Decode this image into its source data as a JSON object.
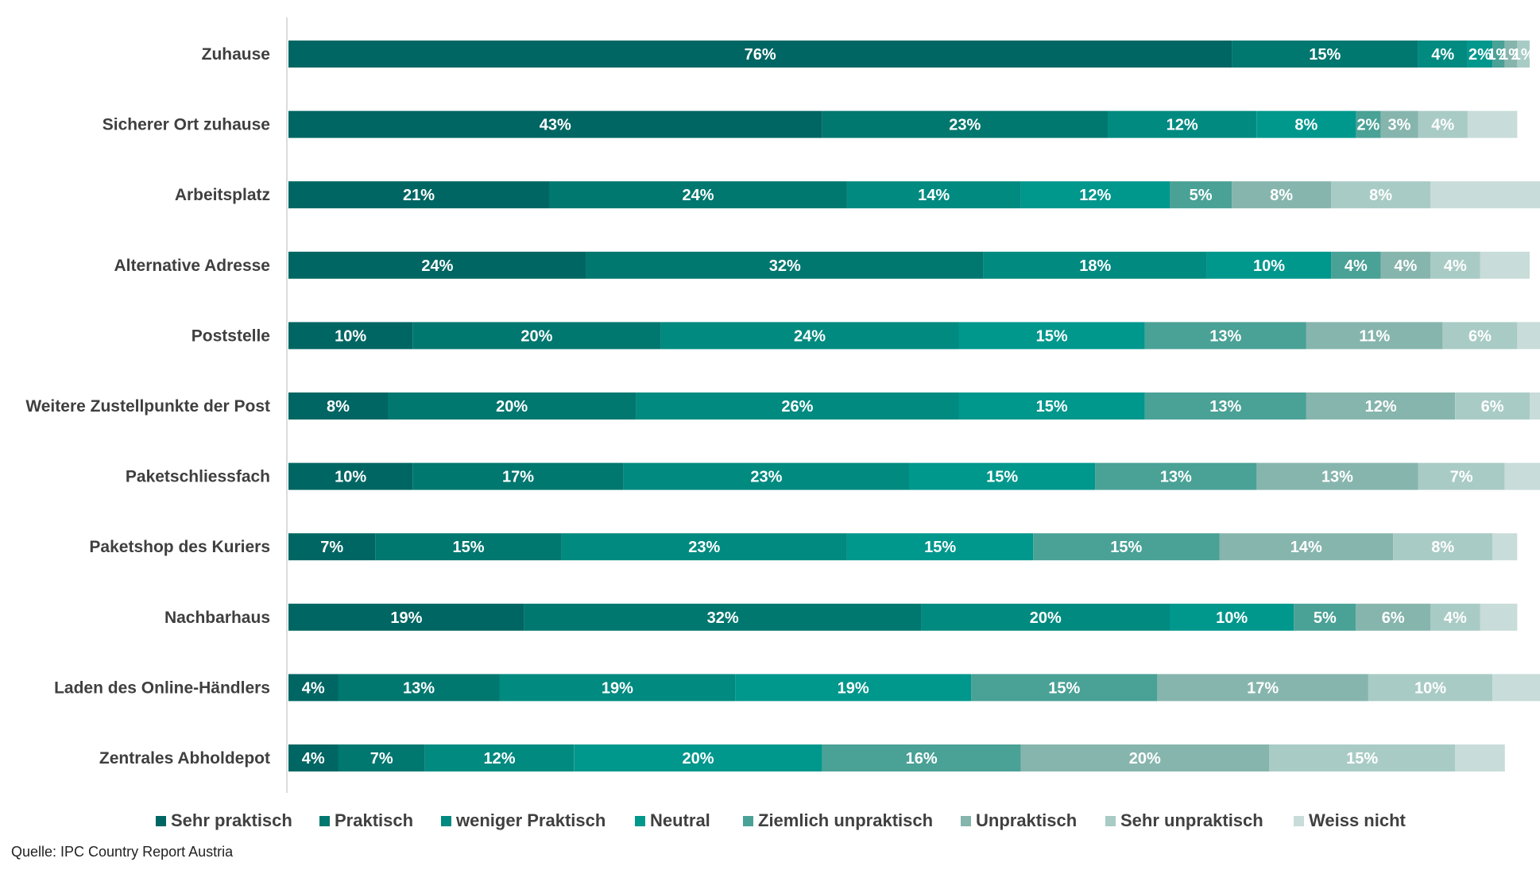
{
  "chart_data": {
    "type": "bar",
    "orientation": "horizontal",
    "stacked": true,
    "percent_stacked": true,
    "title": "",
    "xlabel": "",
    "ylabel": "",
    "xlim": [
      0,
      100
    ],
    "grid": false,
    "legend_position": "bottom",
    "categories": [
      "Zuhause",
      "Sicherer Ort zuhause",
      "Arbeitsplatz",
      "Alternative Adresse",
      "Poststelle",
      "Weitere Zustellpunkte der Post",
      "Paketschliessfach",
      "Paketshop des Kuriers",
      "Nachbarhaus",
      "Laden des Online-Händlers",
      "Zentrales Abholdepot"
    ],
    "series": [
      {
        "name": "Sehr praktisch",
        "color": "#006663",
        "values": [
          76,
          43,
          21,
          24,
          10,
          8,
          10,
          7,
          19,
          4,
          4
        ],
        "labels": [
          "76%",
          "43%",
          "21%",
          "24%",
          "10%",
          "8%",
          "10%",
          "7%",
          "19%",
          "4%",
          "4%"
        ]
      },
      {
        "name": "Praktisch",
        "color": "#00776f",
        "values": [
          15,
          23,
          24,
          32,
          20,
          20,
          17,
          15,
          32,
          13,
          7
        ],
        "labels": [
          "15%",
          "23%",
          "24%",
          "32%",
          "20%",
          "20%",
          "17%",
          "15%",
          "32%",
          "13%",
          "7%"
        ]
      },
      {
        "name": "weniger Praktisch",
        "color": "#008a80",
        "values": [
          4,
          12,
          14,
          18,
          24,
          26,
          23,
          23,
          20,
          19,
          12
        ],
        "labels": [
          "4%",
          "12%",
          "14%",
          "18%",
          "24%",
          "26%",
          "23%",
          "23%",
          "20%",
          "19%",
          "12%"
        ]
      },
      {
        "name": "Neutral",
        "color": "#00978d",
        "values": [
          2,
          8,
          12,
          10,
          15,
          15,
          15,
          15,
          10,
          19,
          20
        ],
        "labels": [
          "2%",
          "8%",
          "12%",
          "10%",
          "15%",
          "15%",
          "15%",
          "15%",
          "10%",
          "19%",
          "20%"
        ]
      },
      {
        "name": "Ziemlich unpraktisch",
        "color": "#4aa196",
        "values": [
          1,
          2,
          5,
          4,
          13,
          13,
          13,
          15,
          5,
          15,
          16
        ],
        "labels": [
          "1%",
          "2%",
          "5%",
          "4%",
          "13%",
          "13%",
          "13%",
          "15%",
          "5%",
          "15%",
          "16%"
        ]
      },
      {
        "name": "Unpraktisch",
        "color": "#86b5ad",
        "values": [
          1,
          3,
          8,
          4,
          11,
          12,
          13,
          14,
          6,
          17,
          20
        ],
        "labels": [
          "1%",
          "3%",
          "8%",
          "4%",
          "11%",
          "12%",
          "13%",
          "14%",
          "6%",
          "17%",
          "20%"
        ]
      },
      {
        "name": "Sehr unpraktisch",
        "color": "#a9cbc5",
        "values": [
          1,
          4,
          8,
          4,
          6,
          6,
          7,
          8,
          4,
          10,
          15
        ],
        "labels": [
          "1%",
          "4%",
          "8%",
          "4%",
          "6%",
          "6%",
          "7%",
          "8%",
          "4%",
          "10%",
          "15%"
        ]
      },
      {
        "name": "Weiss nicht",
        "color": "#c8dcd9",
        "values": [
          0,
          4,
          9,
          4,
          2,
          1,
          3,
          2,
          3,
          4,
          4
        ],
        "labels": [
          "",
          "",
          "",
          "",
          "",
          "",
          "",
          "",
          "",
          "",
          ""
        ]
      }
    ]
  },
  "source": "Quelle: IPC Country Report Austria"
}
